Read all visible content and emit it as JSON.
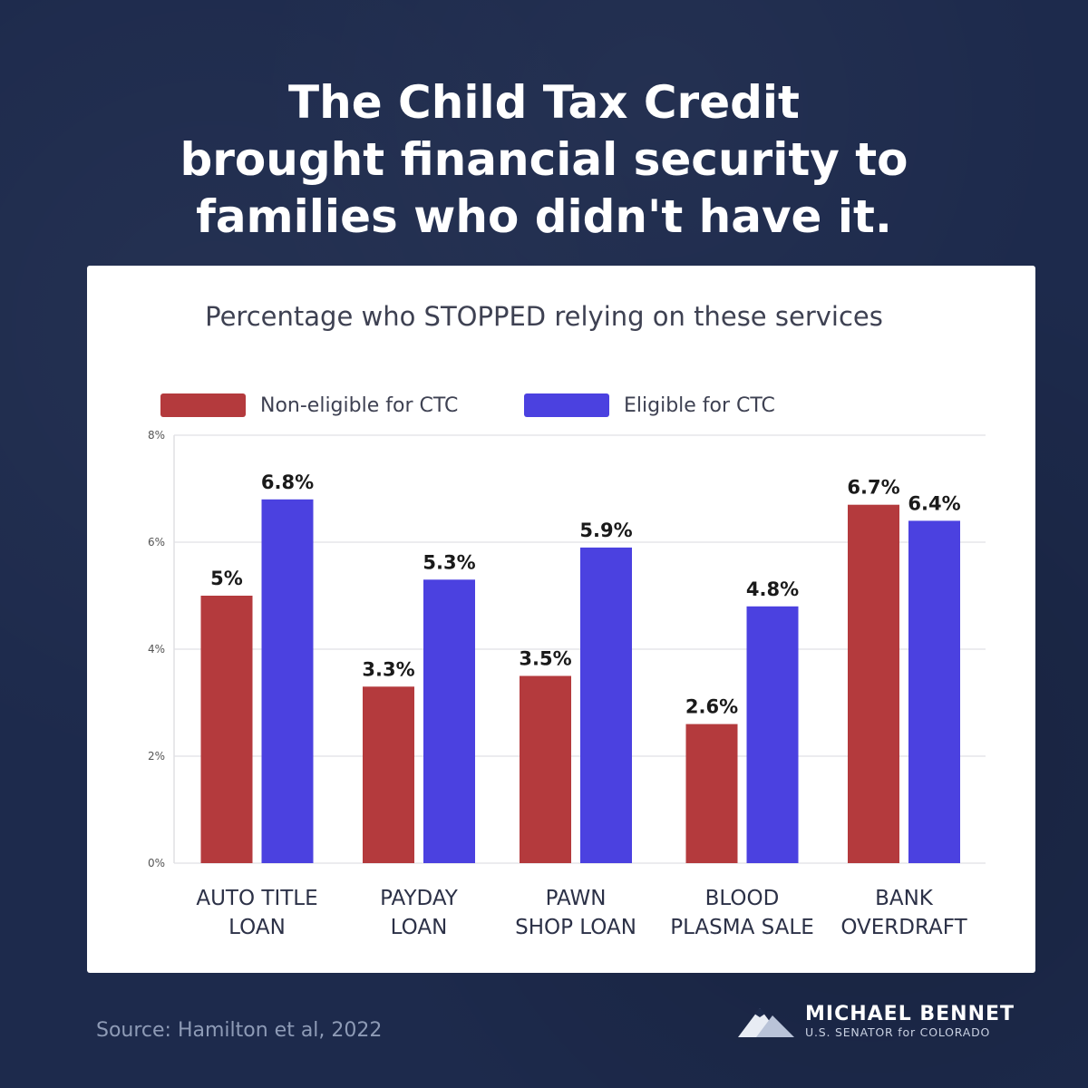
{
  "headline": {
    "lines": [
      "The Child Tax Credit",
      "brought financial security to",
      "families who didn't have it."
    ]
  },
  "footer": {
    "source": "Source: Hamilton et al, 2022",
    "brand_name": "MICHAEL BENNET",
    "brand_sub": "U.S. SENATOR for COLORADO"
  },
  "colors": {
    "background": "#1d2a4c",
    "panel": "#ffffff",
    "non_eligible": "#b43a3d",
    "eligible": "#4b41e0",
    "text": "#3e4152"
  },
  "chart_data": {
    "type": "bar",
    "title": "Percentage who STOPPED relying on these services",
    "xlabel": "",
    "ylabel": "",
    "ylim": [
      0,
      8
    ],
    "yticks": [
      0,
      2,
      4,
      6,
      8
    ],
    "ytick_labels": [
      "0%",
      "2%",
      "4%",
      "6%",
      "8%"
    ],
    "grid": true,
    "legend_position": "top-left",
    "categories": [
      [
        "AUTO TITLE",
        "LOAN"
      ],
      [
        "PAYDAY",
        "LOAN"
      ],
      [
        "PAWN",
        "SHOP LOAN"
      ],
      [
        "BLOOD",
        "PLASMA SALE"
      ],
      [
        "BANK",
        "OVERDRAFT"
      ]
    ],
    "series": [
      {
        "name": "Non-eligible for CTC",
        "color": "#b43a3d",
        "values": [
          5.0,
          3.3,
          3.5,
          2.6,
          6.7
        ],
        "labels": [
          "5%",
          "3.3%",
          "3.5%",
          "2.6%",
          "6.7%"
        ]
      },
      {
        "name": "Eligible for CTC",
        "color": "#4b41e0",
        "values": [
          6.8,
          5.3,
          5.9,
          4.8,
          6.4
        ],
        "labels": [
          "6.8%",
          "5.3%",
          "5.9%",
          "4.8%",
          "6.4%"
        ]
      }
    ]
  }
}
